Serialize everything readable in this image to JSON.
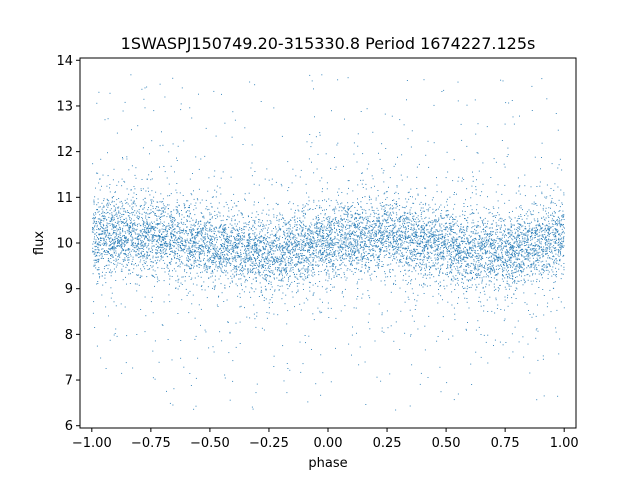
{
  "chart_data": {
    "type": "scatter",
    "title": "1SWASPJ150749.20-315330.8 Period 1674227.125s",
    "xlabel": "phase",
    "ylabel": "flux",
    "xlim": [
      -1.05,
      1.05
    ],
    "ylim": [
      5.95,
      14.05
    ],
    "xticks": [
      -1.0,
      -0.75,
      -0.5,
      -0.25,
      0.0,
      0.25,
      0.5,
      0.75,
      1.0
    ],
    "xtick_labels": [
      "−1.00",
      "−0.75",
      "−0.50",
      "−0.25",
      "0.00",
      "0.25",
      "0.50",
      "0.75",
      "1.00"
    ],
    "yticks": [
      6,
      7,
      8,
      9,
      10,
      11,
      12,
      13,
      14
    ],
    "ytick_labels": [
      "6",
      "7",
      "8",
      "9",
      "10",
      "11",
      "12",
      "13",
      "14"
    ],
    "grid": false,
    "legend": false,
    "series": [
      {
        "color": "#1f77b4",
        "marker": "dot",
        "x_range": [
          -1.0,
          1.0
        ],
        "center": 10.1,
        "core_band": [
          9.3,
          10.9
        ],
        "extent": [
          6.3,
          13.7
        ],
        "profile": [
          {
            "x": -1.0,
            "y": 10.15
          },
          {
            "x": -0.75,
            "y": 10.2
          },
          {
            "x": -0.5,
            "y": 9.95
          },
          {
            "x": -0.25,
            "y": 9.75
          },
          {
            "x": 0.0,
            "y": 10.05
          },
          {
            "x": 0.25,
            "y": 10.2
          },
          {
            "x": 0.5,
            "y": 9.95
          },
          {
            "x": 0.75,
            "y": 9.8
          },
          {
            "x": 1.0,
            "y": 10.15
          }
        ]
      }
    ]
  }
}
